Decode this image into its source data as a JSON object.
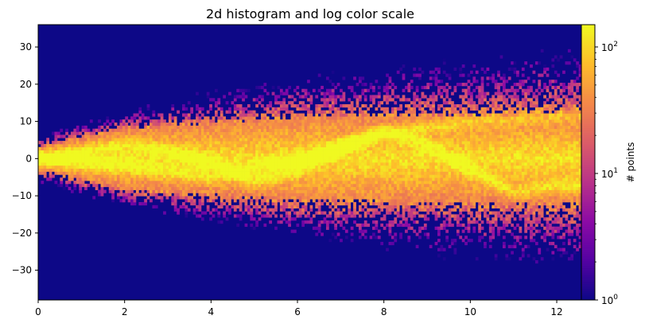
{
  "chart_data": {
    "type": "heatmap",
    "title": "2d histogram and log color scale",
    "xlabel": "",
    "ylabel": "",
    "xlim": [
      0,
      12.57
    ],
    "ylim": [
      -38,
      36
    ],
    "x_ticks": [
      0,
      2,
      4,
      6,
      8,
      10,
      12
    ],
    "y_ticks": [
      -30,
      -20,
      -10,
      0,
      10,
      20,
      30
    ],
    "bins": {
      "x_count": 200,
      "y_count": 90
    },
    "grid": false,
    "cmap": "plasma",
    "colorbar": {
      "label": "# points",
      "scale": "log",
      "min": 1,
      "max": 150,
      "ticks": [
        {
          "base": "10",
          "exp": "0",
          "value": 1
        },
        {
          "base": "10",
          "exp": "1",
          "value": 10
        },
        {
          "base": "10",
          "exp": "2",
          "value": 100
        }
      ]
    },
    "density_model": {
      "core_band_half_width": [
        {
          "x": 0,
          "y": 3
        },
        {
          "x": 2,
          "y": 8
        },
        {
          "x": 6,
          "y": 11
        },
        {
          "x": 12.57,
          "y": 12
        }
      ],
      "outer_spread_half_width": [
        {
          "x": 0,
          "y": 6
        },
        {
          "x": 2,
          "y": 12
        },
        {
          "x": 6,
          "y": 20
        },
        {
          "x": 12.57,
          "y": 26
        }
      ],
      "bright_ridges": [
        [
          {
            "x": 0,
            "y": 0
          },
          {
            "x": 1.5,
            "y": 3
          },
          {
            "x": 2,
            "y": 4
          },
          {
            "x": 3,
            "y": 2
          },
          {
            "x": 4,
            "y": -1
          },
          {
            "x": 5,
            "y": -6
          },
          {
            "x": 6,
            "y": -3
          },
          {
            "x": 7,
            "y": 3
          },
          {
            "x": 8,
            "y": 7
          },
          {
            "x": 9,
            "y": 4
          },
          {
            "x": 10,
            "y": -3
          },
          {
            "x": 11,
            "y": -9
          },
          {
            "x": 12.57,
            "y": -7
          }
        ],
        [
          {
            "x": 0,
            "y": 0
          },
          {
            "x": 2,
            "y": -2
          },
          {
            "x": 4,
            "y": -5
          },
          {
            "x": 6,
            "y": 0
          },
          {
            "x": 8,
            "y": 7
          },
          {
            "x": 10,
            "y": 10
          },
          {
            "x": 12.57,
            "y": 12
          }
        ]
      ],
      "peak_count": 150
    }
  }
}
